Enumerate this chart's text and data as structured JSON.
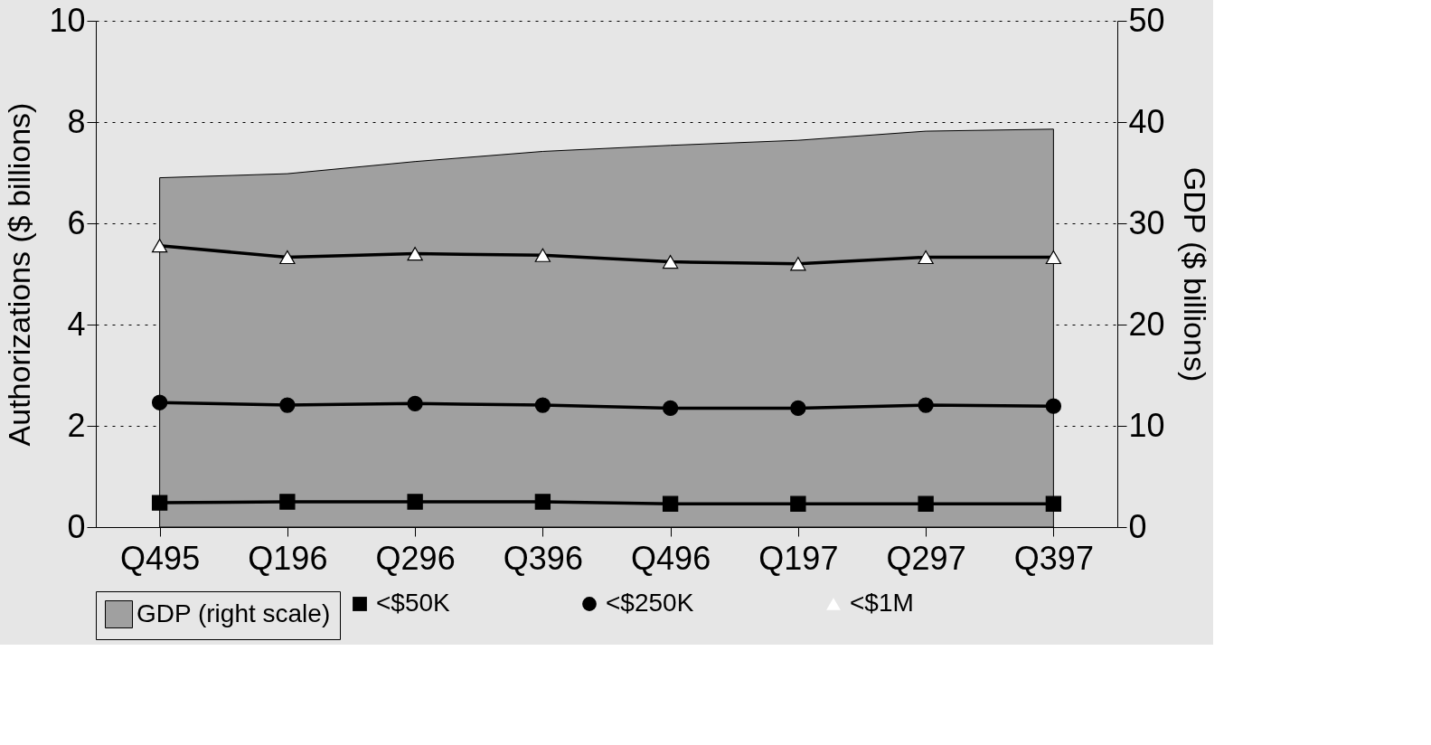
{
  "chart_data": {
    "type": "line",
    "categories": [
      "Q495",
      "Q196",
      "Q296",
      "Q396",
      "Q496",
      "Q197",
      "Q297",
      "Q397"
    ],
    "ylabel": "Authorizations ($ billions)",
    "y2label": "GDP ($ billions)",
    "ylim": [
      0,
      10
    ],
    "yticks": [
      0,
      2,
      4,
      6,
      8,
      10
    ],
    "y2lim": [
      0,
      50
    ],
    "y2ticks": [
      0,
      10,
      20,
      30,
      40,
      50
    ],
    "grid": "y",
    "legend": "bottom",
    "line_style": "solid",
    "series": [
      {
        "name": "GDP (right scale)",
        "type": "area",
        "axis": "y2",
        "color": "#a0a0a0",
        "values": [
          34.5,
          34.9,
          36.1,
          37.1,
          37.7,
          38.2,
          39.1,
          39.3
        ]
      },
      {
        "name": "<$50K",
        "color": "#000000",
        "marker": "square",
        "values": [
          0.48,
          0.5,
          0.5,
          0.5,
          0.46,
          0.46,
          0.46,
          0.46
        ]
      },
      {
        "name": "<$250K",
        "color": "#000000",
        "marker": "circle",
        "values": [
          2.46,
          2.41,
          2.44,
          2.41,
          2.35,
          2.35,
          2.41,
          2.39
        ]
      },
      {
        "name": "<$1M",
        "color": "#000000",
        "marker": "triangle",
        "values": [
          5.56,
          5.33,
          5.4,
          5.37,
          5.24,
          5.2,
          5.33,
          5.33
        ]
      }
    ]
  }
}
